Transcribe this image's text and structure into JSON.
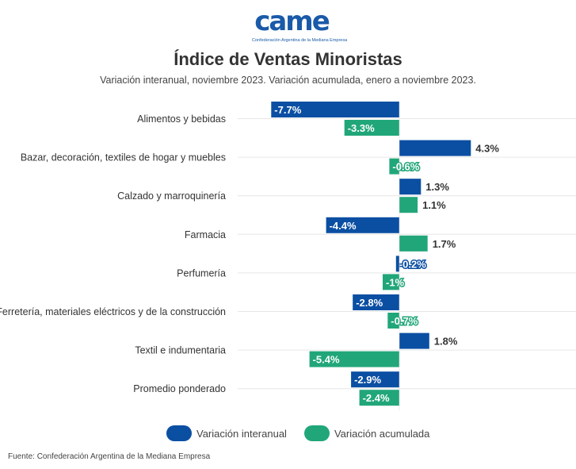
{
  "logo": {
    "text": "came",
    "subtitle": "Confederación Argentina de la Mediana Empresa"
  },
  "colors": {
    "interanual": "#0b4fa3",
    "acumulada": "#21a67a"
  },
  "chart_data": {
    "type": "bar",
    "orientation": "horizontal",
    "title": "Índice de Ventas Minoristas",
    "subtitle": "Variación interanual, noviembre 2023. Variación acumulada, enero a noviembre 2023.",
    "categories": [
      "Alimentos y bebidas",
      "Bazar, decoración, textiles de hogar y muebles",
      "Calzado y marroquinería",
      "Farmacia",
      "Perfumería",
      "Ferretería, materiales eléctricos y de la construcción",
      "Textil e indumentaria",
      "Promedio ponderado"
    ],
    "series": [
      {
        "name": "Variación interanual",
        "values": [
          -7.7,
          4.3,
          1.3,
          -4.4,
          -0.2,
          -2.8,
          1.8,
          -2.9
        ],
        "labels": [
          "-7.7%",
          "4.3%",
          "1.3%",
          "-4.4%",
          "-0.2%",
          "-2.8%",
          "1.8%",
          "-2.9%"
        ]
      },
      {
        "name": "Variación acumulada",
        "values": [
          -3.3,
          -0.6,
          1.1,
          1.7,
          -1,
          -0.7,
          -5.4,
          -2.4
        ],
        "labels": [
          "-3.3%",
          "-0.6%",
          "1.1%",
          "1.7%",
          "-1%",
          "-0.7%",
          "-5.4%",
          "-2.4%"
        ]
      }
    ],
    "xlim": [
      -8.5,
      10
    ],
    "grid": true,
    "legend": "bottom"
  },
  "source": "Fuente: Confederación Argentina de la Mediana Empresa"
}
